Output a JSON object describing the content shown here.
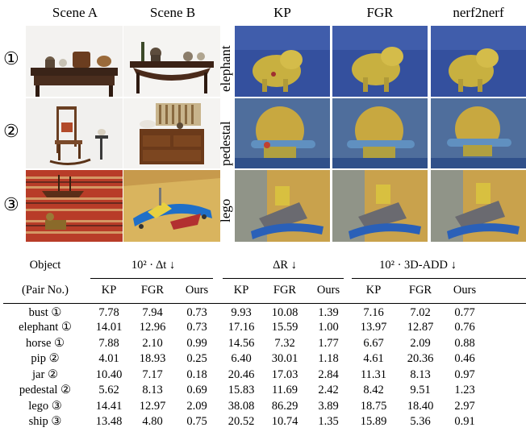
{
  "figure": {
    "col_headers": [
      "Scene A",
      "Scene B",
      "KP",
      "FGR",
      "nerf2nerf"
    ],
    "row_markers": [
      "①",
      "②",
      "③"
    ],
    "scene_labels": [
      "elephant",
      "pedestal",
      "lego"
    ]
  },
  "table": {
    "group_headers": {
      "object": "Object",
      "dt": "10² · Δt ↓",
      "dr": "ΔR ↓",
      "add": "10² · 3D-ADD ↓"
    },
    "pair_label": "(Pair No.)",
    "sub_headers": [
      "KP",
      "FGR",
      "Ours",
      "KP",
      "FGR",
      "Ours",
      "KP",
      "FGR",
      "Ours"
    ],
    "rows": [
      {
        "object": "bust ①",
        "values": [
          "7.78",
          "7.94",
          "0.73",
          "9.93",
          "10.08",
          "1.39",
          "7.16",
          "7.02",
          "0.77"
        ]
      },
      {
        "object": "elephant ①",
        "values": [
          "14.01",
          "12.96",
          "0.73",
          "17.16",
          "15.59",
          "1.00",
          "13.97",
          "12.87",
          "0.76"
        ]
      },
      {
        "object": "horse ①",
        "values": [
          "7.88",
          "2.10",
          "0.99",
          "14.56",
          "7.32",
          "1.77",
          "6.67",
          "2.09",
          "0.88"
        ]
      },
      {
        "object": "pip ②",
        "values": [
          "4.01",
          "18.93",
          "0.25",
          "6.40",
          "30.01",
          "1.18",
          "4.61",
          "20.36",
          "0.46"
        ]
      },
      {
        "object": "jar ②",
        "values": [
          "10.40",
          "7.17",
          "0.18",
          "20.46",
          "17.03",
          "2.84",
          "11.31",
          "8.13",
          "0.97"
        ]
      },
      {
        "object": "pedestal ②",
        "values": [
          "5.62",
          "8.13",
          "0.69",
          "15.83",
          "11.69",
          "2.42",
          "8.42",
          "9.51",
          "1.23"
        ]
      },
      {
        "object": "lego ③",
        "values": [
          "14.41",
          "12.97",
          "2.09",
          "38.08",
          "86.29",
          "3.89",
          "18.75",
          "18.40",
          "2.97"
        ]
      },
      {
        "object": "ship ③",
        "values": [
          "13.48",
          "4.80",
          "0.75",
          "20.52",
          "10.74",
          "1.35",
          "15.89",
          "5.36",
          "0.91"
        ]
      }
    ]
  }
}
